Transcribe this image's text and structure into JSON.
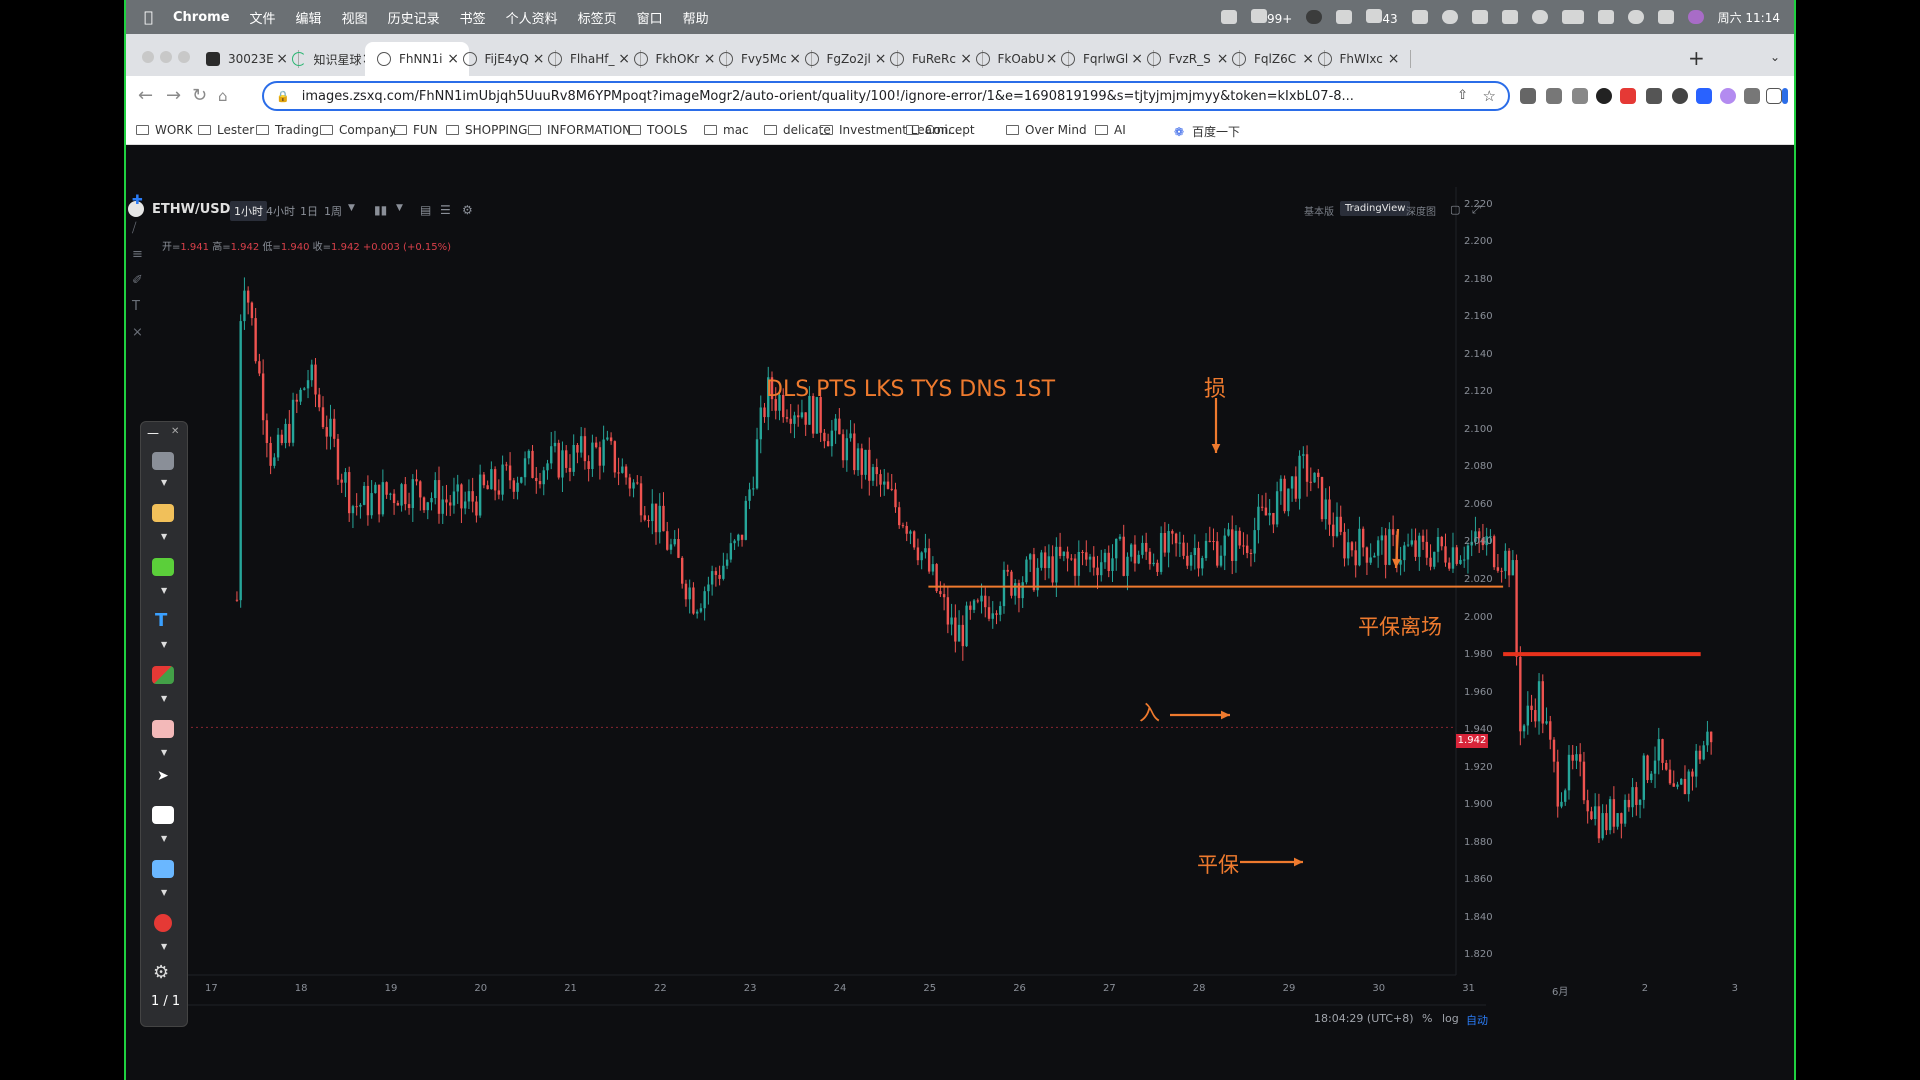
{
  "menubar": {
    "app": "Chrome",
    "items": [
      "文件",
      "编辑",
      "视图",
      "历史记录",
      "书签",
      "个人资料",
      "标签页",
      "窗口",
      "帮助"
    ],
    "notif_count": "99+",
    "wechat_count": "43",
    "datetime": "周六 11:14"
  },
  "tabs": [
    {
      "label": "30023E",
      "icon": "tradingview-icon"
    },
    {
      "label": "知识星球",
      "icon": "loading-icon"
    },
    {
      "label": "FhNN1i",
      "icon": "globe-icon",
      "active": true
    },
    {
      "label": "FijE4yQ",
      "icon": "globe-icon"
    },
    {
      "label": "FlhaHf_",
      "icon": "globe-icon"
    },
    {
      "label": "FkhOKr",
      "icon": "globe-icon"
    },
    {
      "label": "Fvy5Mc",
      "icon": "globe-icon"
    },
    {
      "label": "FgZo2jl",
      "icon": "globe-icon"
    },
    {
      "label": "FuReRc",
      "icon": "globe-icon"
    },
    {
      "label": "FkOabU",
      "icon": "globe-icon"
    },
    {
      "label": "FqrlwGl",
      "icon": "globe-icon"
    },
    {
      "label": "FvzR_S",
      "icon": "globe-icon"
    },
    {
      "label": "FqlZ6C",
      "icon": "globe-icon"
    },
    {
      "label": "FhWIxc",
      "icon": "globe-icon"
    }
  ],
  "address": {
    "url": "images.zsxq.com/FhNN1imUbjqh5UuuRv8M6YPMpoqt?imageMogr2/auto-orient/quality/100!/ignore-error/1&e=1690819199&s=tjtyjmjmjmyy&token=kIxbL07-8..."
  },
  "bookmarks": [
    "WORK",
    "Lester",
    "Trading",
    "Company",
    "FUN",
    "SHOPPING",
    "INFORMATION",
    "TOOLS",
    "mac",
    "delicate",
    "Investment Learni...",
    "Concept",
    "Over Mind",
    "AI",
    "百度一下"
  ],
  "chart_header": {
    "symbol": "ETHW/USDT",
    "timeframes": [
      "1小时",
      "4小时",
      "1日",
      "1周"
    ],
    "active_timeframe": "1小时",
    "versions": [
      "基本版",
      "TradingView",
      "深度图"
    ],
    "active_version": "TradingView"
  },
  "ohlc": {
    "open_label": "开=",
    "open": "1.941",
    "high_label": "高=",
    "high": "1.942",
    "low_label": "低=",
    "low": "1.940",
    "close_label": "收=",
    "close": "1.942",
    "change": "+0.003 (+0.15%)"
  },
  "chart_data": {
    "type": "candlestick",
    "symbol": "ETHW/USDT",
    "interval": "1小时",
    "y_ticks": [
      2.22,
      2.2,
      2.18,
      2.16,
      2.14,
      2.12,
      2.1,
      2.08,
      2.06,
      2.04,
      2.02,
      2.0,
      1.98,
      1.96,
      1.94,
      1.92,
      1.9,
      1.88,
      1.86,
      1.84,
      1.82
    ],
    "y_tick_labels": [
      "2.220",
      "2.200",
      "2.180",
      "2.160",
      "2.140",
      "2.120",
      "2.100",
      "2.080",
      "2.060",
      "2.040",
      "2.020",
      "2.000",
      "1.980",
      "1.960",
      "1.940",
      "1.920",
      "1.900",
      "1.880",
      "1.860",
      "1.840",
      "1.820"
    ],
    "x_tick_labels": [
      "17",
      "18",
      "19",
      "20",
      "21",
      "22",
      "23",
      "24",
      "25",
      "26",
      "27",
      "28",
      "29",
      "30",
      "31",
      "6月",
      "2",
      "3"
    ],
    "ylim": [
      1.81,
      2.23
    ],
    "last_price": 1.942,
    "last_price_label": "1.942",
    "key_points": [
      {
        "day": 17.3,
        "price": 2.01
      },
      {
        "day": 17.35,
        "price": 2.195
      },
      {
        "day": 17.7,
        "price": 2.08
      },
      {
        "day": 18.1,
        "price": 2.13
      },
      {
        "day": 18.6,
        "price": 2.06
      },
      {
        "day": 19.2,
        "price": 2.07
      },
      {
        "day": 19.8,
        "price": 2.06
      },
      {
        "day": 20.5,
        "price": 2.08
      },
      {
        "day": 21.4,
        "price": 2.09
      },
      {
        "day": 21.9,
        "price": 2.06
      },
      {
        "day": 22.4,
        "price": 2.01
      },
      {
        "day": 22.9,
        "price": 2.04
      },
      {
        "day": 23.2,
        "price": 2.12
      },
      {
        "day": 23.7,
        "price": 2.11
      },
      {
        "day": 24.3,
        "price": 2.08
      },
      {
        "day": 24.8,
        "price": 2.05
      },
      {
        "day": 25.3,
        "price": 1.99
      },
      {
        "day": 25.9,
        "price": 2.02
      },
      {
        "day": 26.5,
        "price": 2.03
      },
      {
        "day": 27.5,
        "price": 2.035
      },
      {
        "day": 28.5,
        "price": 2.04
      },
      {
        "day": 29.2,
        "price": 2.08
      },
      {
        "day": 29.6,
        "price": 2.04
      },
      {
        "day": 30.5,
        "price": 2.035
      },
      {
        "day": 31.2,
        "price": 2.04
      },
      {
        "day": 31.5,
        "price": 2.03
      },
      {
        "day": 31.55,
        "price": 1.98
      },
      {
        "day": 31.6,
        "price": 1.94
      },
      {
        "day": 31.8,
        "price": 1.96
      },
      {
        "day": 32.0,
        "price": 1.91
      },
      {
        "day": 32.2,
        "price": 1.92
      },
      {
        "day": 32.5,
        "price": 1.89
      },
      {
        "day": 32.9,
        "price": 1.91
      },
      {
        "day": 33.1,
        "price": 1.93
      },
      {
        "day": 33.3,
        "price": 1.9
      },
      {
        "day": 33.6,
        "price": 1.93
      },
      {
        "day": 33.75,
        "price": 1.942
      }
    ],
    "hlines": [
      {
        "from_day": 25.0,
        "to_day": 31.4,
        "price": 2.017,
        "color": "#ee7a2e"
      },
      {
        "from_day": 31.4,
        "to_day": 33.6,
        "price": 1.981,
        "color": "#e8321c"
      }
    ]
  },
  "annotations": {
    "title": "DLS PTS LKS TYS DNS 1ST",
    "stop": "损",
    "entry": "入",
    "breakeven": "平保",
    "breakeven_exit": "平保离场"
  },
  "footer": {
    "time": "18:04:29 (UTC+8)",
    "percent": "%",
    "log": "log",
    "auto": "自动"
  },
  "palette": {
    "page": "1 / 1"
  }
}
